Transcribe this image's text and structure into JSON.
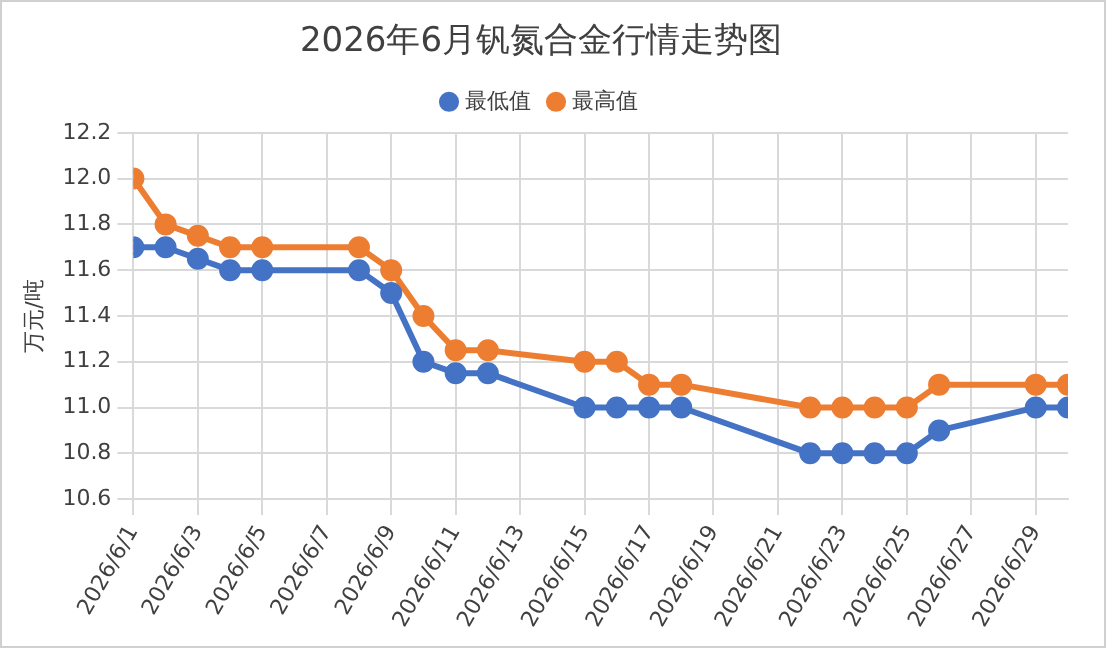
{
  "chart_data": {
    "type": "line",
    "title": "2026年6月钒氮合金行情走势图",
    "ylabel": "万元/吨",
    "x": [
      "2026-06-01",
      "2026-06-02",
      "2026-06-03",
      "2026-06-04",
      "2026-06-05",
      "2026-06-08",
      "2026-06-09",
      "2026-06-10",
      "2026-06-11",
      "2026-06-12",
      "2026-06-15",
      "2026-06-16",
      "2026-06-17",
      "2026-06-18",
      "2026-06-22",
      "2026-06-23",
      "2026-06-24",
      "2026-06-25",
      "2026-06-26",
      "2026-06-29",
      "2026-06-30"
    ],
    "series": [
      {
        "name": "最低值",
        "color": "#4472c4",
        "values": [
          11.7,
          11.7,
          11.65,
          11.6,
          11.6,
          11.6,
          11.5,
          11.2,
          11.15,
          11.15,
          11.0,
          11.0,
          11.0,
          11.0,
          10.8,
          10.8,
          10.8,
          10.8,
          10.9,
          11.0,
          11.0
        ]
      },
      {
        "name": "最高值",
        "color": "#ed7d31",
        "values": [
          12.0,
          11.8,
          11.75,
          11.7,
          11.7,
          11.7,
          11.6,
          11.4,
          11.25,
          11.25,
          11.2,
          11.2,
          11.1,
          11.1,
          11.0,
          11.0,
          11.0,
          11.0,
          11.1,
          11.1,
          11.1
        ]
      }
    ],
    "xlim": [
      "2026-06-01",
      "2026-06-30"
    ],
    "xticks": [
      {
        "value": "2026-06-01",
        "label": "2026/6/1"
      },
      {
        "value": "2026-06-03",
        "label": "2026/6/3"
      },
      {
        "value": "2026-06-05",
        "label": "2026/6/5"
      },
      {
        "value": "2026-06-07",
        "label": "2026/6/7"
      },
      {
        "value": "2026-06-09",
        "label": "2026/6/9"
      },
      {
        "value": "2026-06-11",
        "label": "2026/6/11"
      },
      {
        "value": "2026-06-13",
        "label": "2026/6/13"
      },
      {
        "value": "2026-06-15",
        "label": "2026/6/15"
      },
      {
        "value": "2026-06-17",
        "label": "2026/6/17"
      },
      {
        "value": "2026-06-19",
        "label": "2026/6/19"
      },
      {
        "value": "2026-06-21",
        "label": "2026/6/21"
      },
      {
        "value": "2026-06-23",
        "label": "2026/6/23"
      },
      {
        "value": "2026-06-25",
        "label": "2026/6/25"
      },
      {
        "value": "2026-06-27",
        "label": "2026/6/27"
      },
      {
        "value": "2026-06-29",
        "label": "2026/6/29"
      }
    ],
    "ylim": [
      10.6,
      12.2
    ],
    "yticks": [
      {
        "value": 10.6,
        "label": "10.6"
      },
      {
        "value": 10.8,
        "label": "10.8"
      },
      {
        "value": 11.0,
        "label": "11.0"
      },
      {
        "value": 11.2,
        "label": "11.2"
      },
      {
        "value": 11.4,
        "label": "11.4"
      },
      {
        "value": 11.6,
        "label": "11.6"
      },
      {
        "value": 11.8,
        "label": "11.8"
      },
      {
        "value": 12.0,
        "label": "12.0"
      },
      {
        "value": 12.2,
        "label": "12.2"
      }
    ],
    "grid": true,
    "legend": "top",
    "marker": "circle",
    "line_style": "solid"
  }
}
